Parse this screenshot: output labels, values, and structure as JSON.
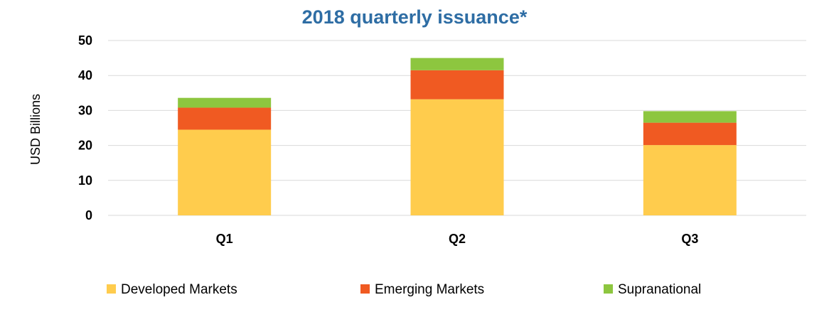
{
  "chart_data": {
    "type": "bar",
    "stacked": true,
    "title": "2018 quarterly issuance*",
    "ylabel": "USD Billions",
    "xlabel": "",
    "categories": [
      "Q1",
      "Q2",
      "Q3"
    ],
    "ylim": [
      0,
      50
    ],
    "yticks": [
      0,
      10,
      20,
      30,
      40,
      50
    ],
    "grid": true,
    "legend_position": "bottom",
    "series": [
      {
        "name": "Developed Markets",
        "values": [
          24.5,
          33.2,
          20.1
        ],
        "color": "#FFCC4D"
      },
      {
        "name": "Emerging Markets",
        "values": [
          6.3,
          8.3,
          6.4
        ],
        "color": "#F05A22"
      },
      {
        "name": "Supranational",
        "values": [
          2.8,
          3.5,
          3.3
        ],
        "color": "#8DC63F"
      }
    ],
    "colors": {
      "title": "#2E6DA4",
      "gridline": "#D9D9D9"
    }
  }
}
